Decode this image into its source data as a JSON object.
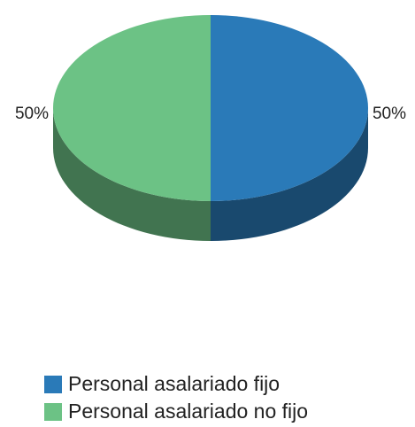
{
  "chart_data": {
    "type": "pie",
    "categories": [
      "Personal asalariado fijo",
      "Personal asalariado no fijo"
    ],
    "values": [
      50,
      50
    ],
    "value_labels": [
      "50%",
      "50%"
    ],
    "colors": [
      "#2a7ab8",
      "#6cc285"
    ]
  }
}
